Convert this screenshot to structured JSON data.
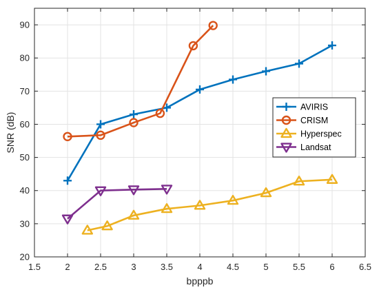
{
  "chart_data": {
    "type": "line",
    "xlabel": "bpppb",
    "ylabel": "SNR (dB)",
    "xlim": [
      1.5,
      6.5
    ],
    "ylim": [
      20,
      95
    ],
    "xticks": [
      "1.5",
      "2",
      "2.5",
      "3",
      "3.5",
      "4",
      "4.5",
      "5",
      "5.5",
      "6",
      "6.5"
    ],
    "yticks": [
      "20",
      "30",
      "40",
      "50",
      "60",
      "70",
      "80",
      "90"
    ],
    "grid": true,
    "legend_position": "right",
    "series": [
      {
        "name": "AVIRIS",
        "color": "#0072BD",
        "marker": "plus",
        "x": [
          2.0,
          2.5,
          3.0,
          3.5,
          4.0,
          4.5,
          5.0,
          5.5,
          6.0
        ],
        "y": [
          43.0,
          60.0,
          63.0,
          65.0,
          70.5,
          73.5,
          76.0,
          78.3,
          83.8
        ]
      },
      {
        "name": "CRISM",
        "color": "#D95319",
        "marker": "circle",
        "x": [
          2.0,
          2.5,
          3.0,
          3.4,
          3.9,
          4.2
        ],
        "y": [
          56.3,
          56.7,
          60.5,
          63.3,
          83.7,
          89.8
        ]
      },
      {
        "name": "Hyperspec",
        "color": "#EDB120",
        "marker": "triangle-up",
        "x": [
          2.3,
          2.6,
          3.0,
          3.5,
          4.0,
          4.5,
          5.0,
          5.5,
          6.0
        ],
        "y": [
          28.0,
          29.3,
          32.5,
          34.5,
          35.5,
          37.0,
          39.3,
          42.8,
          43.3
        ]
      },
      {
        "name": "Landsat",
        "color": "#7E2F8E",
        "marker": "triangle-down",
        "x": [
          2.0,
          2.5,
          3.0,
          3.5
        ],
        "y": [
          31.5,
          40.0,
          40.3,
          40.5
        ]
      }
    ]
  }
}
